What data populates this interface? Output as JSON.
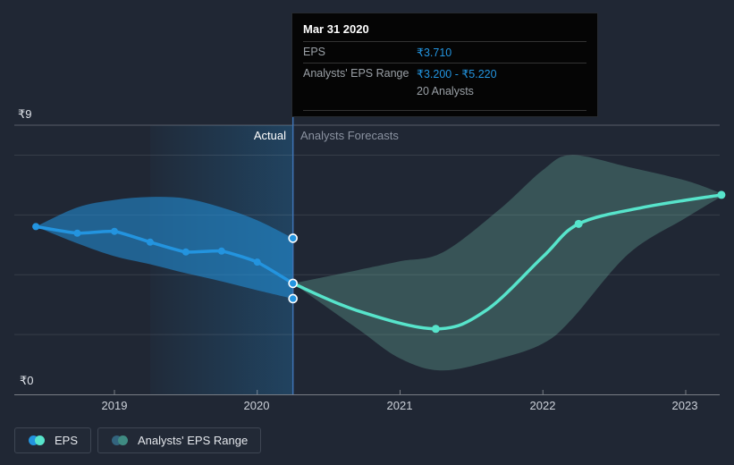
{
  "labels": {
    "actual": "Actual",
    "forecasts": "Analysts Forecasts",
    "y_top": "₹9",
    "y_bottom": "₹0"
  },
  "tooltip": {
    "date": "Mar 31 2020",
    "eps_label": "EPS",
    "eps_value": "₹3.710",
    "range_label": "Analysts' EPS Range",
    "range_value": "₹3.200 - ₹5.220",
    "analysts_note": "20 Analysts",
    "value_color": "#2394df"
  },
  "legend": [
    {
      "label": "EPS",
      "dot_left": "#2394df",
      "dot_right": "#57e4cb"
    },
    {
      "label": "Analysts' EPS Range",
      "dot_left": "#33647e",
      "dot_right": "#3f8b82"
    }
  ],
  "chart_data": {
    "type": "line",
    "title": "EPS: actual vs analysts forecast",
    "currency": "₹",
    "ylim": [
      0,
      9
    ],
    "gridline_values": [
      9,
      8,
      6,
      4,
      2
    ],
    "x_ticks": [
      2019,
      2020,
      2021,
      2022,
      2023
    ],
    "x_tick_labels": [
      "2019",
      "2020",
      "2021",
      "2022",
      "2023"
    ],
    "divider_x": 2020.25,
    "highlight_range": [
      2019.25,
      2020.25
    ],
    "colors": {
      "actual_line": "#2394df",
      "actual_band": "rgba(35,148,223,0.55)",
      "forecast_line": "#57e4cb",
      "forecast_band": "rgba(120,200,180,0.28)",
      "hover_line": "#3e73b4",
      "grid_major": "rgba(255,255,255,0.25)",
      "grid_minor": "rgba(255,255,255,0.10)",
      "axis": "rgba(255,255,255,0.40)",
      "highlight_fill": "rgba(35,148,223,0.26)"
    },
    "series": [
      {
        "name": "EPS (actual)",
        "type": "line",
        "markers": "all",
        "x": [
          2018.45,
          2018.74,
          2019.0,
          2019.25,
          2019.5,
          2019.75,
          2020.0,
          2020.25
        ],
        "values": [
          5.61,
          5.39,
          5.45,
          5.09,
          4.76,
          4.79,
          4.42,
          3.71
        ]
      },
      {
        "name": "Analysts' EPS Range (actual)",
        "type": "band",
        "x": [
          2018.45,
          2018.74,
          2019.0,
          2019.25,
          2019.5,
          2019.75,
          2020.0,
          2020.25
        ],
        "high": [
          5.61,
          6.25,
          6.5,
          6.6,
          6.55,
          6.25,
          5.82,
          5.22
        ],
        "low": [
          5.61,
          5.05,
          4.62,
          4.35,
          4.05,
          3.78,
          3.48,
          3.2
        ]
      },
      {
        "name": "EPS (forecast)",
        "type": "line",
        "marker_x": [
          2021.25,
          2022.25,
          2023.25
        ],
        "x": [
          2020.25,
          2020.7,
          2021.25,
          2021.6,
          2022.0,
          2022.25,
          2022.7,
          2023.25
        ],
        "values": [
          3.71,
          2.8,
          2.19,
          2.8,
          4.6,
          5.7,
          6.25,
          6.67
        ]
      },
      {
        "name": "Analysts' EPS Range (forecast)",
        "type": "band",
        "x": [
          2020.25,
          2020.7,
          2021.0,
          2021.3,
          2021.7,
          2022.0,
          2022.2,
          2022.6,
          2023.0,
          2023.25
        ],
        "high": [
          3.71,
          4.15,
          4.45,
          4.75,
          6.2,
          7.5,
          8.0,
          7.6,
          7.15,
          6.72
        ],
        "low": [
          3.71,
          2.2,
          1.2,
          0.8,
          1.2,
          1.7,
          2.5,
          4.7,
          5.9,
          6.62
        ]
      }
    ],
    "hover_point": {
      "x": 2020.25,
      "date": "Mar 31 2020",
      "eps": 3.71,
      "range_low": 3.2,
      "range_high": 5.22
    }
  }
}
